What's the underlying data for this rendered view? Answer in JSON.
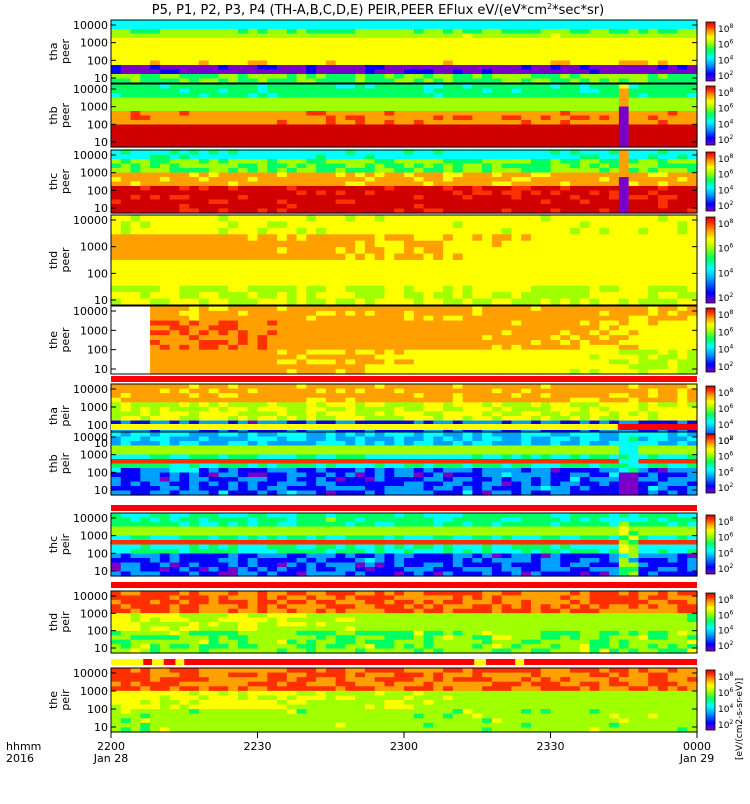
{
  "title": "P5, P1, P2, P3, P4 (TH-A,B,C,D,E) PEIR,PEER EFlux eV/(eV*cm",
  "title_sup": "2",
  "title_tail": "*sec*sr)",
  "colorbar_unit_label": "[eV/(cm2-s-sr-eV)]",
  "chart_data": {
    "type": "heatmap",
    "x_axis": {
      "ticks": [
        "2200",
        "2230",
        "2300",
        "2330",
        "0000"
      ],
      "sub_labels": [
        "Jan 28",
        "",
        "",
        "",
        "Jan 29"
      ],
      "left_labels": [
        "hhmm",
        "2016"
      ]
    },
    "y_ticks": [
      "10000",
      "1000",
      "100",
      "10"
    ],
    "colorbar_ticks": [
      "10^8",
      "10^6",
      "10^4",
      "10^2"
    ],
    "colorscale": [
      "#7a00c8",
      "#0000ff",
      "#00a0ff",
      "#00ffff",
      "#00ff60",
      "#a0ff00",
      "#ffff00",
      "#ffa000",
      "#ff3000",
      "#d00000"
    ],
    "panels": [
      {
        "probe": "tha",
        "species": "peer",
        "status_bar": "none"
      },
      {
        "probe": "thb",
        "species": "peer",
        "status_bar": "none"
      },
      {
        "probe": "thc",
        "species": "peer",
        "status_bar": "none"
      },
      {
        "probe": "thd",
        "species": "peer",
        "status_bar": "none"
      },
      {
        "probe": "the",
        "species": "peer",
        "status_bar": "none"
      },
      {
        "probe": "tha",
        "species": "peir",
        "status_bar": "red"
      },
      {
        "probe": "thb",
        "species": "peir",
        "status_bar": "yellow-red"
      },
      {
        "probe": "thc",
        "species": "peir",
        "status_bar": "red"
      },
      {
        "probe": "thd",
        "species": "peir",
        "status_bar": "red"
      },
      {
        "probe": "the",
        "species": "peir",
        "status_bar": "red-yellow"
      }
    ]
  }
}
